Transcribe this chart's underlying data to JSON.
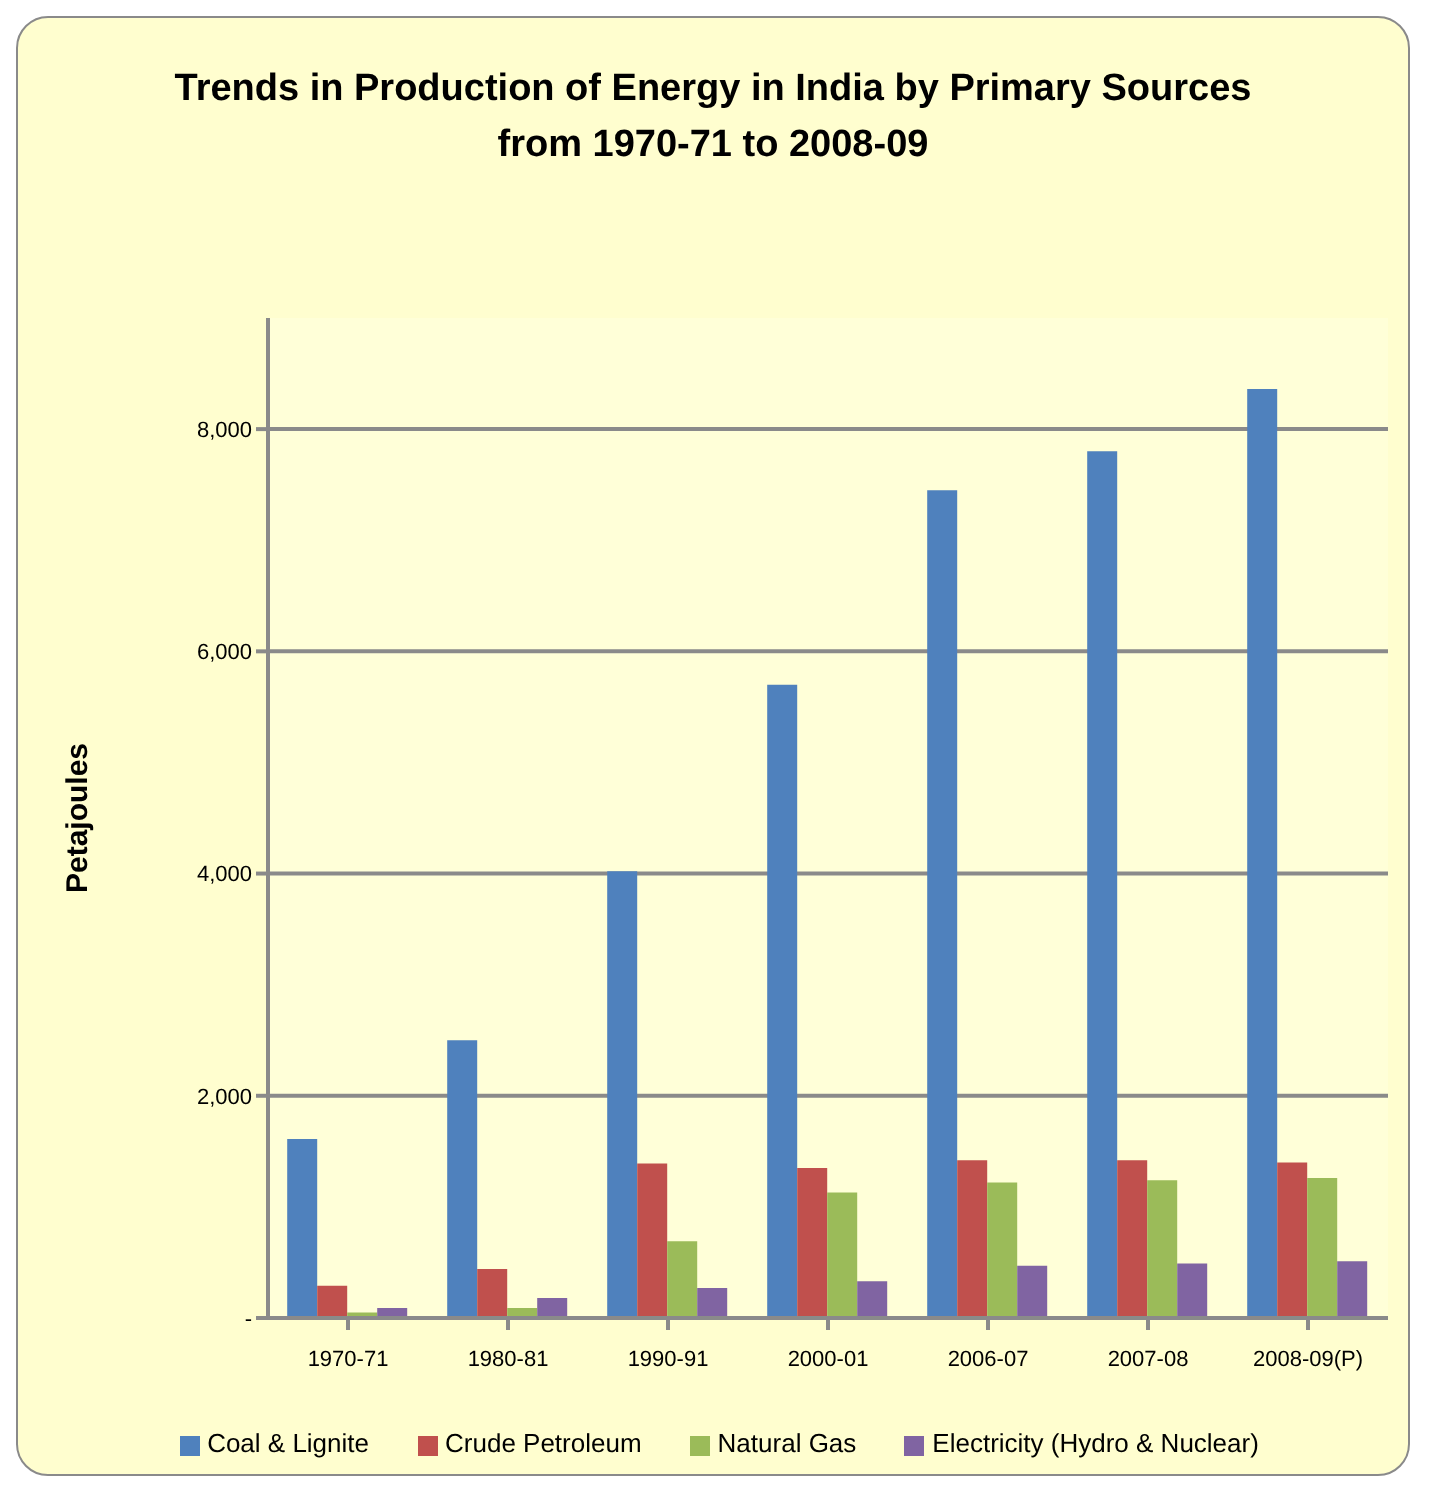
{
  "chart_data": {
    "type": "bar",
    "title": "Trends in Production of Energy in India by Primary Sources\nfrom 1970-71 to 2008-09",
    "ylabel": "Petajoules",
    "categories": [
      "1970-71",
      "1980-81",
      "1990-91",
      "2000-01",
      "2006-07",
      "2007-08",
      "2008-09(P)"
    ],
    "series": [
      {
        "name": "Coal & Lignite",
        "color": "#4f81bd",
        "values": [
          1610,
          2500,
          4020,
          5700,
          7450,
          7800,
          8360
        ]
      },
      {
        "name": "Crude Petroleum",
        "color": "#c0504d",
        "values": [
          290,
          440,
          1390,
          1350,
          1420,
          1420,
          1400
        ]
      },
      {
        "name": "Natural Gas",
        "color": "#9bbb59",
        "values": [
          50,
          90,
          690,
          1130,
          1220,
          1240,
          1260
        ]
      },
      {
        "name": "Electricity (Hydro & Nuclear)",
        "color": "#8064a2",
        "values": [
          90,
          180,
          270,
          330,
          470,
          490,
          510
        ]
      }
    ],
    "ylim": [
      0,
      9000
    ],
    "yticks": [
      {
        "value": 0,
        "label": "-"
      },
      {
        "value": 2000,
        "label": "2,000"
      },
      {
        "value": 4000,
        "label": "4,000"
      },
      {
        "value": 6000,
        "label": "6,000"
      },
      {
        "value": 8000,
        "label": "8,000"
      }
    ],
    "grid": "y",
    "legend": "bottom"
  }
}
